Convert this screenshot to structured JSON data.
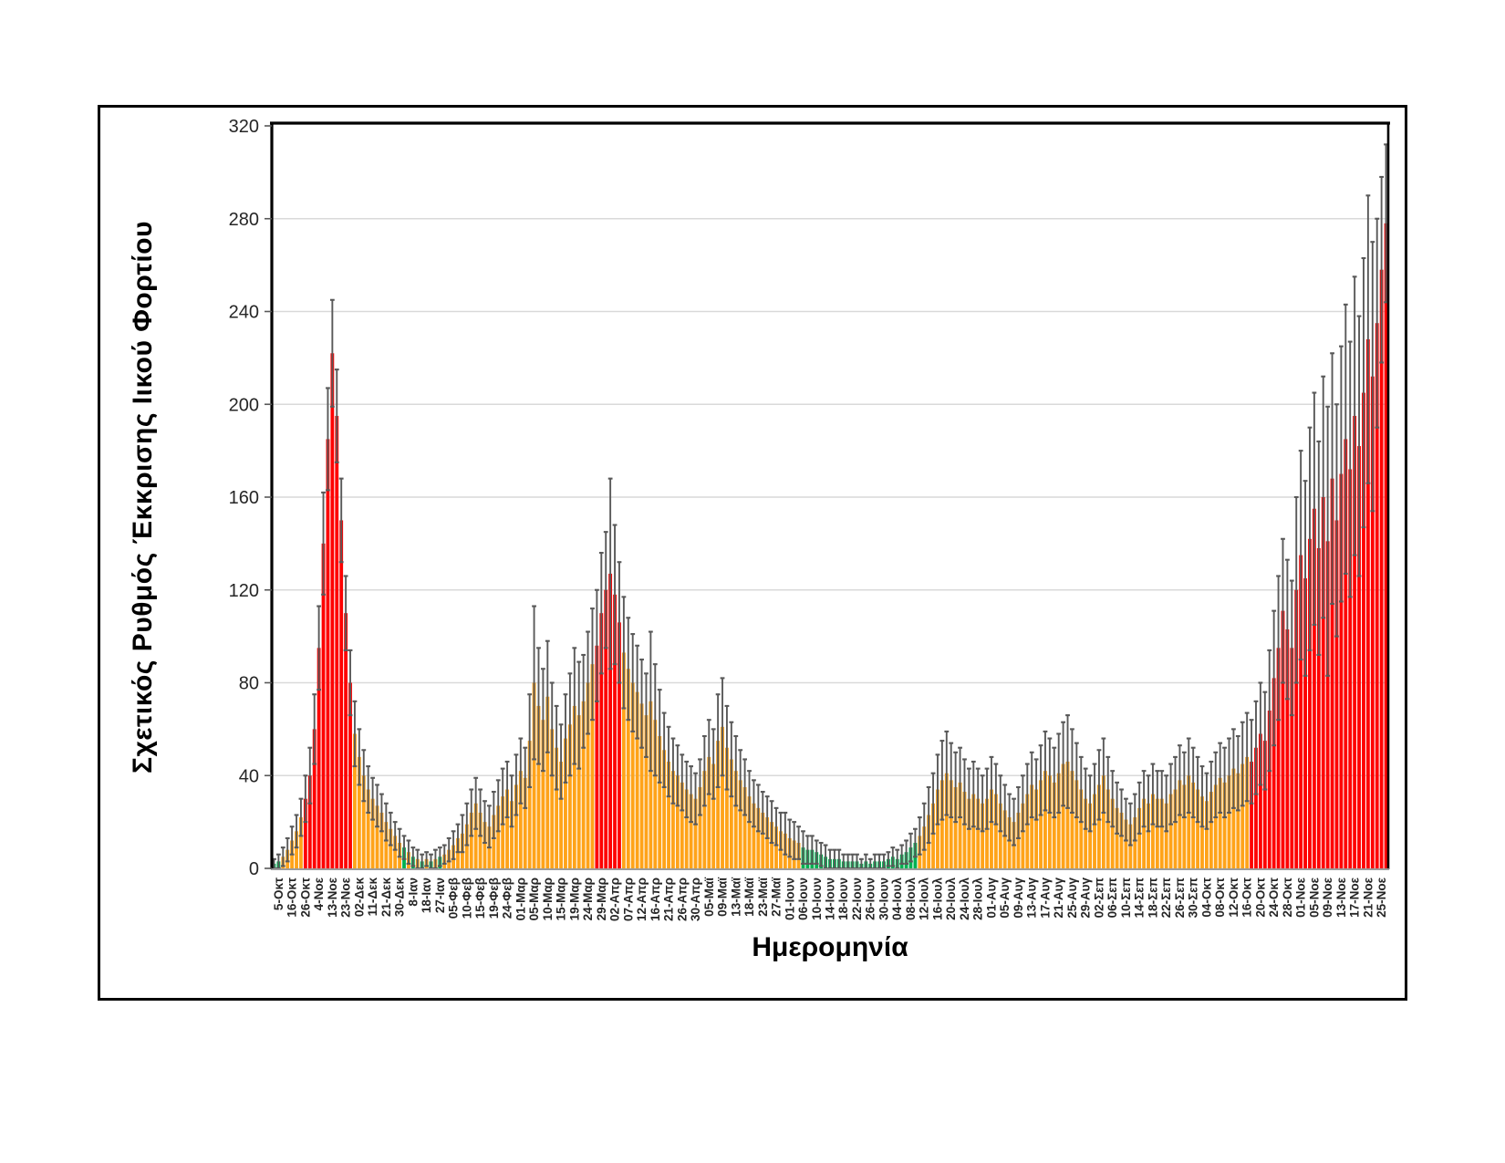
{
  "chart_data": {
    "type": "bar",
    "title": "",
    "ylabel": "Σχετικός Ρυθμός Έκκρισης Ιικού Φορτίου",
    "xlabel": "Ημερομηνία",
    "ylim": [
      0,
      320
    ],
    "y_ticks": [
      320,
      280,
      240,
      200,
      160,
      120,
      80,
      40,
      0
    ],
    "grid": "horizontal",
    "legend": "none",
    "error_bars": "symmetric around bar top",
    "x_tick_labels": [
      "5-Οκτ",
      "16-Οκτ",
      "26-Οκτ",
      "4-Νοε",
      "13-Νοε",
      "23-Νοε",
      "02-Δεκ",
      "11-Δεκ",
      "21-Δεκ",
      "30-Δεκ",
      "8-Ιαν",
      "18-Ιαν",
      "27-Ιαν",
      "05-Φεβ",
      "10-Φεβ",
      "15-Φεβ",
      "19-Φεβ",
      "24-Φεβ",
      "01-Μαρ",
      "05-Μαρ",
      "10-Μαρ",
      "15-Μαρ",
      "19-Μαρ",
      "24-Μαρ",
      "29-Μαρ",
      "02-Απρ",
      "07-Απρ",
      "12-Απρ",
      "16-Απρ",
      "21-Απρ",
      "26-Απρ",
      "30-Απρ",
      "05-Μαϊ",
      "09-Μαϊ",
      "13-Μαϊ",
      "18-Μαϊ",
      "23-Μαϊ",
      "27-Μαϊ",
      "01-Ιουν",
      "06-Ιουν",
      "10-Ιουν",
      "14-Ιουν",
      "18-Ιουν",
      "22-Ιουν",
      "26-Ιουν",
      "30-Ιουν",
      "04-Ιουλ",
      "08-Ιουλ",
      "12-Ιουλ",
      "16-Ιουλ",
      "20-Ιουλ",
      "24-Ιουλ",
      "28-Ιουλ",
      "01-Αυγ",
      "05-Αυγ",
      "09-Αυγ",
      "13-Αυγ",
      "17-Αυγ",
      "21-Αυγ",
      "25-Αυγ",
      "29-Αυγ",
      "02-Σεπ",
      "06-Σεπ",
      "10-Σεπ",
      "14-Σεπ",
      "18-Σεπ",
      "22-Σεπ",
      "26-Σεπ",
      "30-Σεπ",
      "04-Οκτ",
      "08-Οκτ",
      "12-Οκτ",
      "16-Οκτ",
      "20-Οκτ",
      "24-Οκτ",
      "28-Οκτ",
      "01-Νοε",
      "05-Νοε",
      "09-Νοε",
      "13-Νοε",
      "17-Νοε",
      "21-Νοε",
      "25-Νοε"
    ],
    "bars_per_label": 3,
    "values": [
      2,
      3,
      5,
      8,
      12,
      16,
      22,
      30,
      40,
      60,
      95,
      140,
      185,
      222,
      195,
      150,
      110,
      80,
      58,
      48,
      40,
      34,
      30,
      27,
      24,
      20,
      17,
      14,
      11,
      9,
      7,
      5,
      4,
      3,
      4,
      3,
      4,
      5,
      6,
      8,
      10,
      13,
      15,
      19,
      24,
      28,
      24,
      20,
      18,
      23,
      27,
      31,
      34,
      29,
      36,
      42,
      39,
      55,
      80,
      70,
      64,
      74,
      60,
      52,
      46,
      56,
      62,
      70,
      66,
      72,
      80,
      88,
      96,
      110,
      120,
      127,
      118,
      106,
      93,
      86,
      80,
      76,
      71,
      66,
      72,
      64,
      57,
      51,
      46,
      42,
      40,
      37,
      34,
      32,
      30,
      35,
      42,
      48,
      45,
      55,
      61,
      52,
      47,
      42,
      38,
      35,
      31,
      28,
      26,
      24,
      22,
      20,
      18,
      16,
      15,
      13,
      12,
      11,
      9,
      8,
      8,
      7,
      6,
      5,
      4,
      4,
      4,
      3,
      3,
      3,
      3,
      2,
      3,
      2,
      3,
      3,
      3,
      4,
      5,
      4,
      6,
      7,
      9,
      11,
      14,
      18,
      23,
      28,
      34,
      38,
      41,
      38,
      35,
      37,
      33,
      30,
      32,
      30,
      28,
      30,
      34,
      32,
      28,
      25,
      22,
      20,
      24,
      28,
      32,
      36,
      34,
      38,
      42,
      40,
      37,
      41,
      45,
      46,
      42,
      38,
      34,
      30,
      28,
      32,
      36,
      40,
      34,
      30,
      26,
      24,
      21,
      19,
      22,
      26,
      30,
      28,
      32,
      30,
      30,
      28,
      32,
      34,
      38,
      36,
      40,
      37,
      34,
      31,
      29,
      33,
      36,
      39,
      37,
      40,
      43,
      41,
      45,
      48,
      46,
      52,
      58,
      55,
      68,
      82,
      95,
      111,
      103,
      95,
      120,
      135,
      125,
      142,
      155,
      138,
      160,
      141,
      168,
      150,
      170,
      185,
      172,
      195,
      182,
      205,
      228,
      212,
      235,
      258,
      278
    ],
    "errors": [
      2,
      3,
      4,
      5,
      6,
      7,
      8,
      10,
      12,
      15,
      18,
      22,
      22,
      23,
      20,
      18,
      16,
      14,
      14,
      12,
      11,
      10,
      9,
      9,
      8,
      8,
      7,
      6,
      6,
      5,
      5,
      4,
      4,
      3,
      3,
      3,
      4,
      4,
      4,
      5,
      6,
      6,
      8,
      9,
      10,
      11,
      10,
      9,
      9,
      10,
      11,
      12,
      12,
      11,
      13,
      14,
      13,
      20,
      33,
      25,
      22,
      24,
      20,
      18,
      16,
      19,
      22,
      25,
      23,
      20,
      22,
      24,
      24,
      26,
      25,
      41,
      30,
      26,
      24,
      22,
      21,
      20,
      19,
      18,
      30,
      24,
      20,
      16,
      15,
      14,
      13,
      12,
      12,
      12,
      11,
      12,
      15,
      16,
      15,
      20,
      21,
      18,
      16,
      15,
      13,
      12,
      11,
      10,
      10,
      9,
      9,
      9,
      8,
      8,
      9,
      8,
      8,
      7,
      7,
      6,
      6,
      5,
      5,
      5,
      4,
      4,
      4,
      3,
      3,
      3,
      3,
      2,
      3,
      2,
      3,
      3,
      3,
      3,
      4,
      4,
      4,
      5,
      6,
      6,
      8,
      10,
      12,
      13,
      15,
      17,
      18,
      16,
      15,
      15,
      14,
      13,
      14,
      13,
      12,
      13,
      14,
      13,
      12,
      11,
      10,
      10,
      11,
      12,
      13,
      14,
      13,
      15,
      17,
      16,
      15,
      17,
      18,
      20,
      18,
      16,
      14,
      13,
      12,
      13,
      15,
      16,
      14,
      12,
      11,
      10,
      9,
      9,
      10,
      11,
      12,
      12,
      13,
      12,
      12,
      12,
      13,
      14,
      15,
      14,
      16,
      15,
      14,
      13,
      12,
      13,
      14,
      15,
      15,
      16,
      17,
      16,
      18,
      19,
      18,
      20,
      22,
      21,
      26,
      29,
      31,
      31,
      30,
      29,
      40,
      45,
      42,
      48,
      50,
      46,
      52,
      58,
      54,
      50,
      55,
      58,
      55,
      60,
      56,
      58,
      62,
      58,
      45,
      40,
      34
    ],
    "color_segments": [
      {
        "from": 0,
        "to": 1,
        "color": "green"
      },
      {
        "from": 2,
        "to": 6,
        "color": "orange"
      },
      {
        "from": 7,
        "to": 17,
        "color": "red"
      },
      {
        "from": 18,
        "to": 27,
        "color": "orange"
      },
      {
        "from": 28,
        "to": 38,
        "color": "mix"
      },
      {
        "from": 39,
        "to": 71,
        "color": "orange"
      },
      {
        "from": 72,
        "to": 77,
        "color": "red"
      },
      {
        "from": 78,
        "to": 117,
        "color": "orange"
      },
      {
        "from": 118,
        "to": 143,
        "color": "green"
      },
      {
        "from": 144,
        "to": 217,
        "color": "orange"
      },
      {
        "from": 218,
        "to": 248,
        "color": "red"
      }
    ],
    "colors": {
      "green": "#00B050",
      "orange": "#FFA319",
      "red": "#FE0000",
      "error_bar": "#595959",
      "gridline": "#D9D9D9",
      "axis_frame": "#000000",
      "baseline": "#9c9c9c",
      "tick_text": "#262626"
    }
  }
}
